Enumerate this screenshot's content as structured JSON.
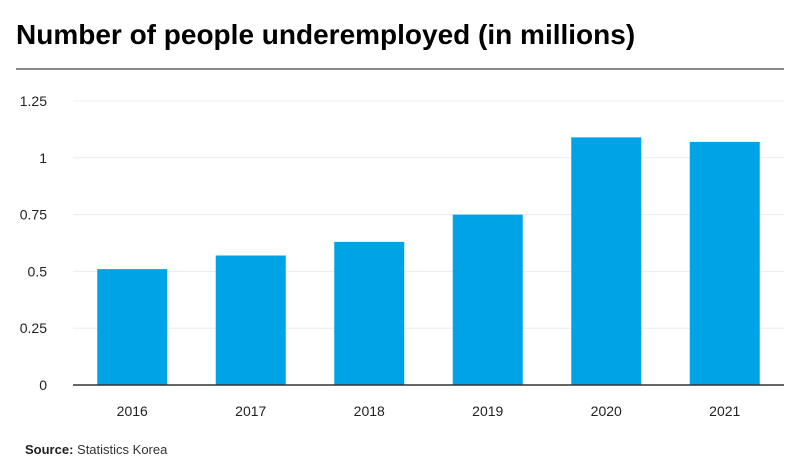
{
  "title": "Number of people underemployed (in millions)",
  "source": {
    "label": "Source:",
    "text": " Statistics Korea"
  },
  "colors": {
    "bar": "#00a3e6",
    "grid": "#ececec",
    "axis": "#333333",
    "rule": "#8a8a8a"
  },
  "chart_data": {
    "type": "bar",
    "title": "Number of people underemployed (in millions)",
    "categories": [
      "2016",
      "2017",
      "2018",
      "2019",
      "2020",
      "2021"
    ],
    "values": [
      0.51,
      0.57,
      0.63,
      0.75,
      1.09,
      1.07
    ],
    "ylim": [
      0,
      1.25
    ],
    "yticks": [
      0,
      0.25,
      0.5,
      0.75,
      1,
      1.25
    ],
    "ytick_labels": [
      "0",
      "0.25",
      "0.5",
      "0.75",
      "1",
      "1.25"
    ],
    "xlabel": "",
    "ylabel": "",
    "grid": true,
    "legend": "none"
  }
}
